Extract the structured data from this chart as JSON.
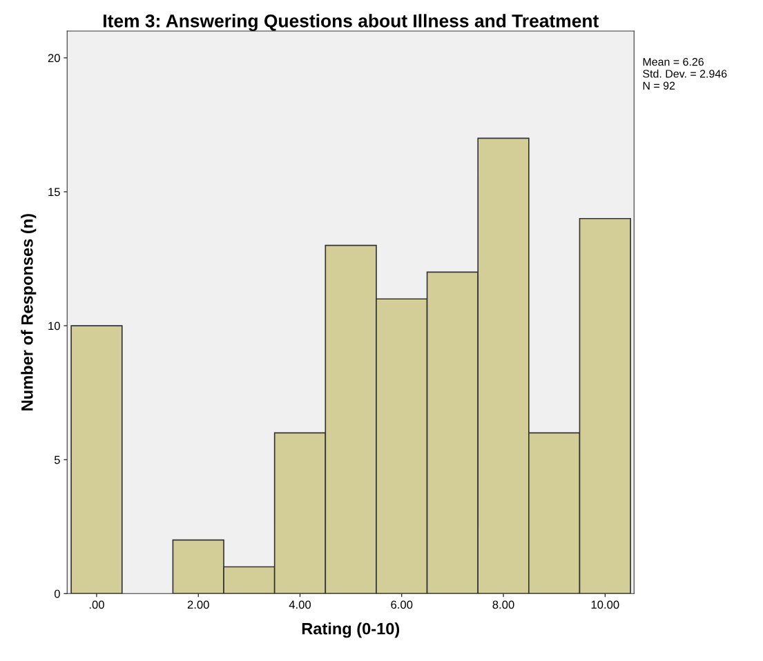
{
  "chart_data": {
    "type": "histogram",
    "title": "Item 3: Answering Questions about Illness and Treatment",
    "xlabel": "Rating (0-10)",
    "ylabel": "Number of Responses (n)",
    "bins": [
      -0.5,
      0.5,
      1.5,
      2.5,
      3.5,
      4.5,
      5.5,
      6.5,
      7.5,
      8.5,
      9.5,
      10.5
    ],
    "values": [
      10,
      0,
      2,
      1,
      6,
      13,
      11,
      12,
      17,
      6,
      14
    ],
    "color": "#d3ce97",
    "xlim": [
      -0.58,
      10.57
    ],
    "xticks": [
      {
        "value": 0,
        "label": ".00"
      },
      {
        "value": 2,
        "label": "2.00"
      },
      {
        "value": 4,
        "label": "4.00"
      },
      {
        "value": 6,
        "label": "6.00"
      },
      {
        "value": 8,
        "label": "8.00"
      },
      {
        "value": 10,
        "label": "10.00"
      }
    ],
    "ylim": [
      0,
      21
    ],
    "yticks": [
      0,
      5,
      10,
      15,
      20
    ],
    "annotations": [
      "Mean = 6.26",
      "Std. Dev. = 2.946",
      "N = 92"
    ],
    "grid": false,
    "legend": false
  }
}
